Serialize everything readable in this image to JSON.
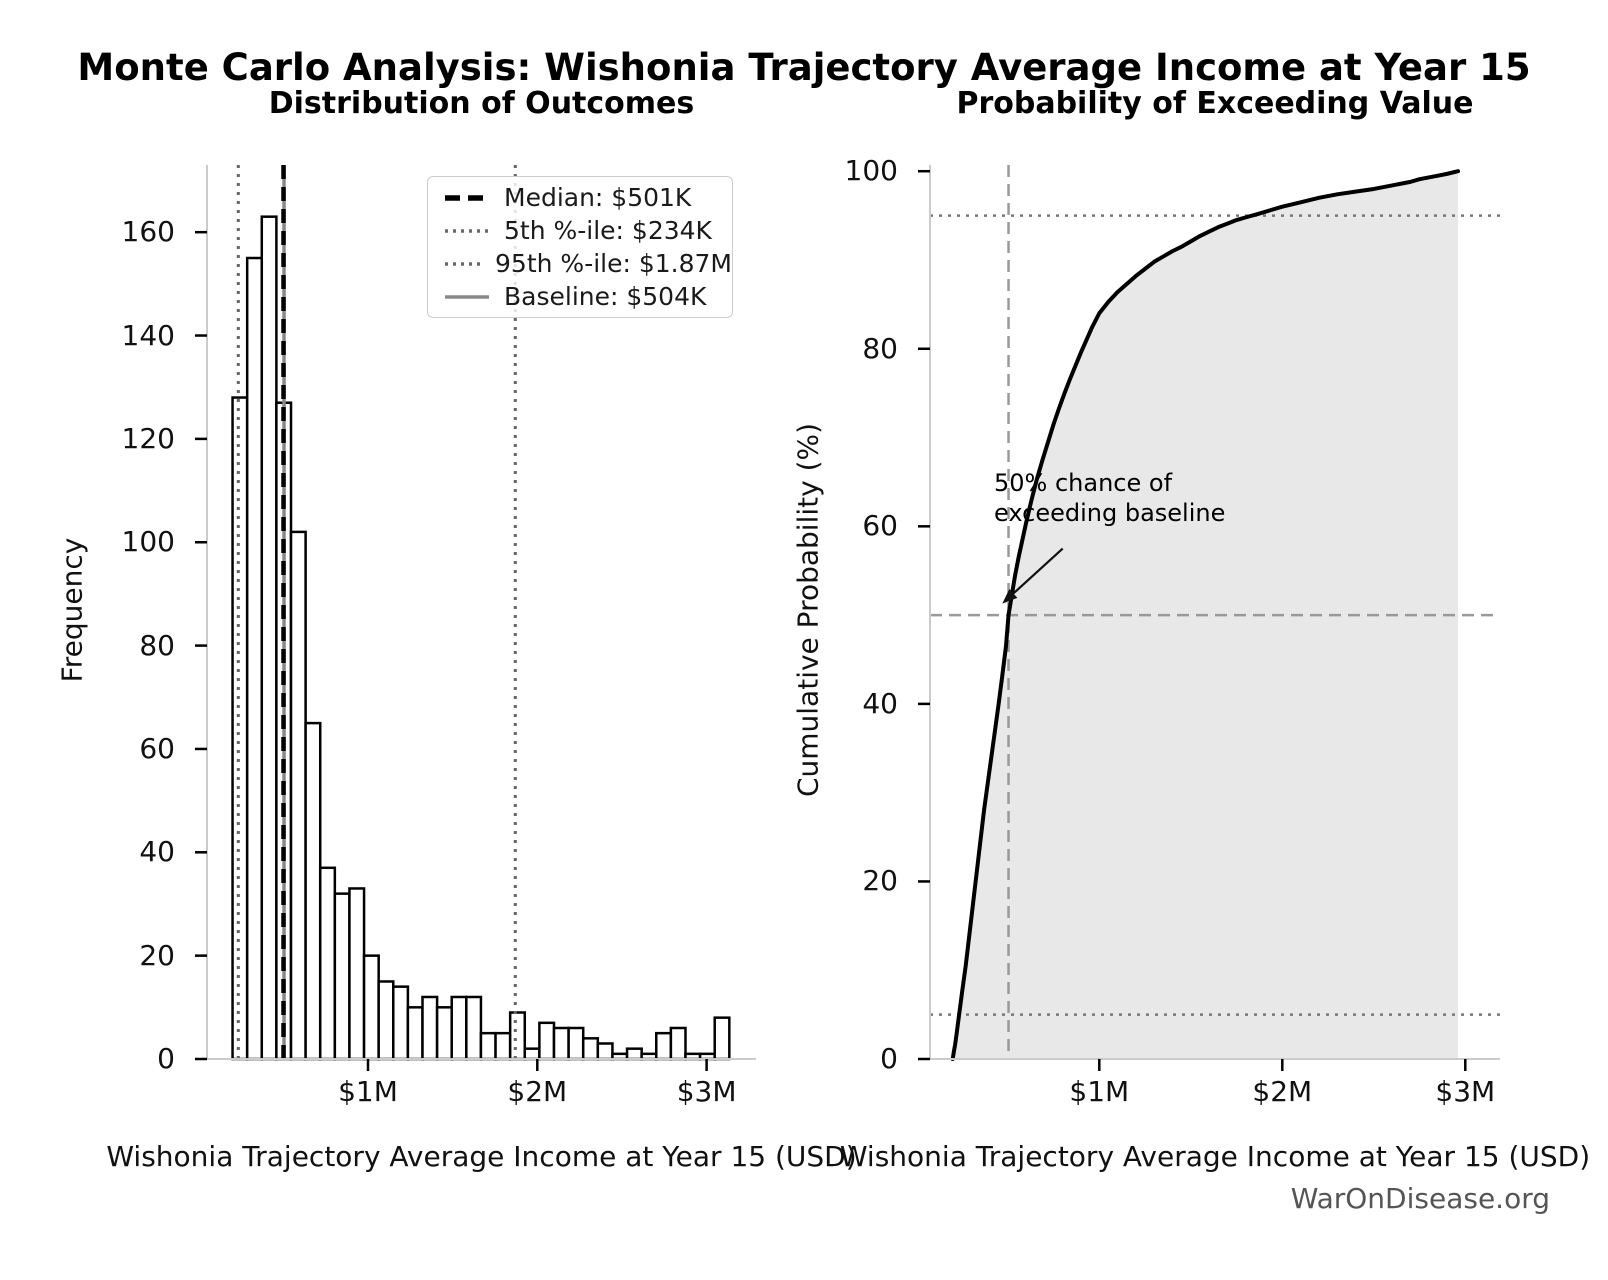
{
  "page": {
    "main_title": "Monte Carlo Analysis: Wishonia Trajectory Average Income at Year 15",
    "footer": "WarOnDisease.org"
  },
  "chart_data": [
    {
      "type": "bar",
      "subtype": "histogram",
      "title": "Distribution of Outcomes",
      "xlabel": "Wishonia Trajectory Average Income at Year 15 (USD)",
      "ylabel": "Frequency",
      "bin_start_musd": 0.2,
      "bin_width_musd": 0.0863,
      "values": [
        128,
        155,
        163,
        127,
        102,
        65,
        37,
        32,
        33,
        20,
        15,
        14,
        10,
        12,
        10,
        12,
        12,
        5,
        5,
        9,
        2,
        7,
        6,
        6,
        4,
        3,
        1,
        2,
        1,
        5,
        6,
        1,
        1,
        8
      ],
      "bar_fill": "#ffffff",
      "bar_edge": "#000000",
      "xlim": [
        0.05,
        3.28
      ],
      "ylim": [
        0,
        173
      ],
      "yticks": [
        0,
        20,
        40,
        60,
        80,
        100,
        120,
        140,
        160
      ],
      "xticks": [
        {
          "v": 1,
          "label": "$1M"
        },
        {
          "v": 2,
          "label": "$2M"
        },
        {
          "v": 3,
          "label": "$3M"
        }
      ],
      "grid": false,
      "ref_lines": [
        {
          "x": 0.504,
          "color": "#888888",
          "style": "solid",
          "width": 3.5,
          "name": "baseline"
        },
        {
          "x": 0.501,
          "color": "#000000",
          "style": "dashed",
          "width": 4.5,
          "name": "median"
        },
        {
          "x": 0.234,
          "color": "#666666",
          "style": "dotted",
          "width": 3,
          "name": "5th-percentile"
        },
        {
          "x": 1.87,
          "color": "#666666",
          "style": "dotted",
          "width": 3,
          "name": "95th-percentile"
        }
      ],
      "legend_position": "upper-right",
      "legend": [
        {
          "label": "Median: $501K",
          "style": "dashed",
          "color": "#000000"
        },
        {
          "label": "5th %-ile: $234K",
          "style": "dotted",
          "color": "#666666"
        },
        {
          "label": "95th %-ile: $1.87M",
          "style": "dotted",
          "color": "#666666"
        },
        {
          "label": "Baseline: $504K",
          "style": "solid",
          "color": "#888888"
        }
      ]
    },
    {
      "type": "line",
      "subtype": "cdf",
      "title": "Probability of Exceeding Value",
      "xlabel": "Wishonia Trajectory Average Income at Year 15 (USD)",
      "ylabel": "Cumulative Probability (%)",
      "line_color": "#000000",
      "line_width": 4,
      "fill": true,
      "fill_color": "#e8e8e8",
      "xlim": [
        0.075,
        3.19
      ],
      "ylim": [
        0,
        100.7
      ],
      "yticks": [
        0,
        20,
        40,
        60,
        80,
        100
      ],
      "xticks": [
        {
          "v": 1,
          "label": "$1M"
        },
        {
          "v": 2,
          "label": "$2M"
        },
        {
          "v": 3,
          "label": "$3M"
        }
      ],
      "points": [
        [
          0.199,
          0
        ],
        [
          0.205,
          0.8
        ],
        [
          0.212,
          1.6
        ],
        [
          0.22,
          2.8
        ],
        [
          0.234,
          5
        ],
        [
          0.25,
          7.5
        ],
        [
          0.27,
          10.5
        ],
        [
          0.29,
          14
        ],
        [
          0.31,
          17.5
        ],
        [
          0.33,
          21
        ],
        [
          0.35,
          24.5
        ],
        [
          0.37,
          28
        ],
        [
          0.39,
          31
        ],
        [
          0.41,
          34
        ],
        [
          0.43,
          37
        ],
        [
          0.45,
          40
        ],
        [
          0.47,
          43.2
        ],
        [
          0.49,
          46.5
        ],
        [
          0.504,
          50
        ],
        [
          0.52,
          52
        ],
        [
          0.54,
          54.5
        ],
        [
          0.56,
          56.6
        ],
        [
          0.58,
          58.5
        ],
        [
          0.6,
          60.4
        ],
        [
          0.63,
          63
        ],
        [
          0.66,
          65.4
        ],
        [
          0.69,
          67.5
        ],
        [
          0.72,
          69.5
        ],
        [
          0.75,
          71.5
        ],
        [
          0.78,
          73.3
        ],
        [
          0.81,
          75
        ],
        [
          0.84,
          76.6
        ],
        [
          0.87,
          78.1
        ],
        [
          0.9,
          79.6
        ],
        [
          0.93,
          81
        ],
        [
          0.96,
          82.4
        ],
        [
          1.0,
          84
        ],
        [
          1.05,
          85.3
        ],
        [
          1.1,
          86.4
        ],
        [
          1.15,
          87.3
        ],
        [
          1.2,
          88.2
        ],
        [
          1.25,
          89
        ],
        [
          1.3,
          89.8
        ],
        [
          1.35,
          90.4
        ],
        [
          1.4,
          91
        ],
        [
          1.45,
          91.5
        ],
        [
          1.5,
          92.1
        ],
        [
          1.55,
          92.7
        ],
        [
          1.6,
          93.2
        ],
        [
          1.65,
          93.7
        ],
        [
          1.7,
          94.1
        ],
        [
          1.75,
          94.5
        ],
        [
          1.8,
          94.8
        ],
        [
          1.87,
          95.2
        ],
        [
          1.95,
          95.7
        ],
        [
          2.0,
          96
        ],
        [
          2.1,
          96.5
        ],
        [
          2.2,
          97
        ],
        [
          2.3,
          97.4
        ],
        [
          2.4,
          97.7
        ],
        [
          2.5,
          98
        ],
        [
          2.6,
          98.4
        ],
        [
          2.7,
          98.8
        ],
        [
          2.75,
          99.1
        ],
        [
          2.8,
          99.3
        ],
        [
          2.85,
          99.5
        ],
        [
          2.9,
          99.7
        ],
        [
          2.96,
          100
        ]
      ],
      "hlines": [
        {
          "y": 95,
          "color": "#777777",
          "style": "dotted",
          "width": 2.5,
          "name": "95th-percentile"
        },
        {
          "y": 50,
          "color": "#999999",
          "style": "dashed",
          "width": 2.5,
          "name": "50-percent"
        },
        {
          "y": 5,
          "color": "#777777",
          "style": "dotted",
          "width": 2.5,
          "name": "5th-percentile"
        }
      ],
      "vlines": [
        {
          "x": 0.504,
          "color": "#999999",
          "style": "dashed",
          "width": 2.5,
          "name": "baseline"
        }
      ],
      "annotation": {
        "text_lines": [
          "50% chance of",
          "exceeding baseline"
        ],
        "arrow_start": [
          0.8,
          57.5
        ],
        "arrow_tip": [
          0.47,
          51.3
        ]
      }
    }
  ]
}
